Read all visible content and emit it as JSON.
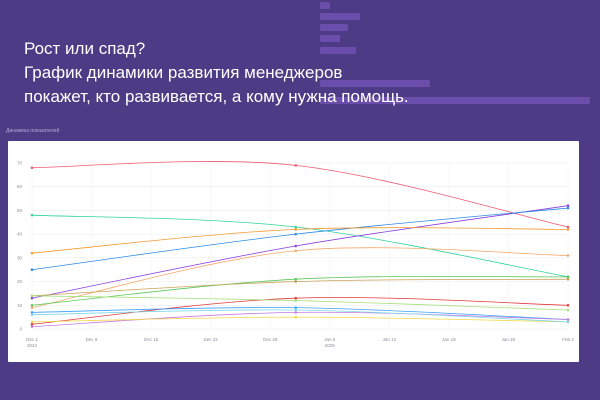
{
  "headline": {
    "line1": "Рост или спад?",
    "line2": "График динамики развития менеджеров",
    "line3": "покажет, кто развивается, а кому нужна помощь."
  },
  "section_title": "Динамика показателей",
  "chart_data": {
    "type": "line",
    "title": "",
    "xlabel": "",
    "ylabel": "",
    "ylim": [
      0,
      70
    ],
    "y_ticks": [
      0,
      10,
      20,
      30,
      40,
      50,
      60,
      70
    ],
    "x_ticks": [
      {
        "date": "2024-12-01",
        "line1": "Dec 1",
        "line2": "2024"
      },
      {
        "date": "2024-12-08",
        "line1": "Dec 8",
        "line2": ""
      },
      {
        "date": "2024-12-15",
        "line1": "Dec 15",
        "line2": ""
      },
      {
        "date": "2024-12-22",
        "line1": "Dec 22",
        "line2": ""
      },
      {
        "date": "2024-12-29",
        "line1": "Dec 29",
        "line2": ""
      },
      {
        "date": "2025-01-05",
        "line1": "Jan 5",
        "line2": "2025"
      },
      {
        "date": "2025-01-12",
        "line1": "Jan 12",
        "line2": ""
      },
      {
        "date": "2025-01-19",
        "line1": "Jan 19",
        "line2": ""
      },
      {
        "date": "2025-01-26",
        "line1": "Jan 26",
        "line2": ""
      },
      {
        "date": "2025-02-02",
        "line1": "Feb 2",
        "line2": ""
      }
    ],
    "x": [
      "2024-12-01",
      "2025-01-01",
      "2025-02-02"
    ],
    "grid": true,
    "series": [
      {
        "color": "#ef5a73",
        "values": [
          68,
          69,
          43
        ]
      },
      {
        "color": "#2fd39a",
        "values": [
          48,
          43,
          22
        ]
      },
      {
        "color": "#8b3fe0",
        "values": [
          13,
          35,
          52
        ]
      },
      {
        "color": "#2b8be6",
        "values": [
          25,
          40,
          51
        ]
      },
      {
        "color": "#f29a2e",
        "values": [
          32,
          42,
          42
        ]
      },
      {
        "color": "#f5a86b",
        "values": [
          9,
          33,
          31
        ]
      },
      {
        "color": "#5ac85a",
        "values": [
          10,
          21,
          22
        ]
      },
      {
        "color": "#c9a35a",
        "values": [
          14,
          20,
          21
        ]
      },
      {
        "color": "#e23b3b",
        "values": [
          2,
          13,
          10
        ]
      },
      {
        "color": "#a8e07a",
        "values": [
          14,
          12,
          8
        ]
      },
      {
        "color": "#3aa0ff",
        "values": [
          7,
          9,
          4
        ]
      },
      {
        "color": "#c87be0",
        "values": [
          1,
          7,
          4
        ]
      },
      {
        "color": "#f2d84a",
        "values": [
          3,
          5,
          3
        ]
      },
      {
        "color": "#7fd8e8",
        "values": [
          6,
          8,
          3
        ]
      }
    ]
  }
}
